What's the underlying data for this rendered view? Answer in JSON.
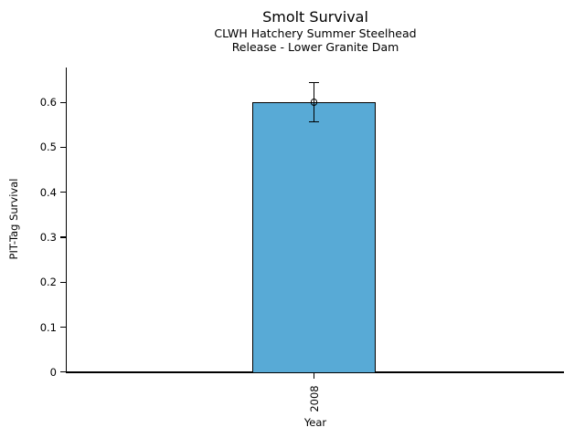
{
  "chart_data": {
    "type": "bar",
    "title": "Smolt Survival",
    "subtitle_lines": [
      "CLWH Hatchery Summer Steelhead",
      "Release - Lower Granite Dam"
    ],
    "xlabel": "Year",
    "ylabel": "PIT-Tag Survival",
    "categories": [
      "2008"
    ],
    "values": [
      0.6
    ],
    "error_low": [
      0.557
    ],
    "error_high": [
      0.644
    ],
    "ytick_values": [
      0,
      0.1,
      0.2,
      0.3,
      0.4,
      0.5,
      0.6
    ],
    "ytick_labels": [
      "0",
      "0.1",
      "0.2",
      "0.3",
      "0.4",
      "0.5",
      "0.6"
    ],
    "ylim": [
      0,
      0.68
    ],
    "grid": false,
    "legend": null,
    "bar_color": "#58AAD6",
    "bar_edge_color": "#000000",
    "marker": "open-circle",
    "xticklabel_rotation_deg": 90
  }
}
